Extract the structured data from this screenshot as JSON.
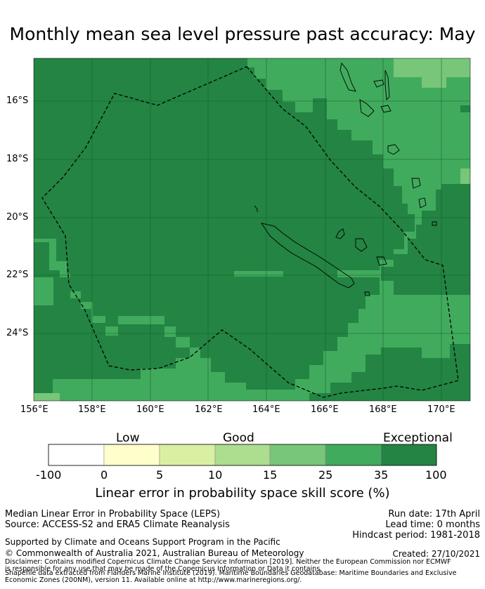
{
  "title": "Monthly mean sea level pressure past accuracy: May",
  "map": {
    "lat_labels": [
      "16°S",
      "18°S",
      "20°S",
      "22°S",
      "24°S"
    ],
    "lon_labels": [
      "156°E",
      "158°E",
      "160°E",
      "162°E",
      "164°E",
      "166°E",
      "168°E",
      "170°E"
    ],
    "colors": {
      "exceptional": "#238443",
      "good_high": "#41ab5d",
      "good_mid": "#78c679",
      "good_low": "#addd8e",
      "low_high": "#d9f0a3",
      "low_low": "#ffffcc",
      "none": "#ffffff"
    }
  },
  "colorbar": {
    "categories": [
      "Low",
      "Good",
      "Exceptional"
    ],
    "ticks": [
      "-100",
      "0",
      "5",
      "10",
      "15",
      "25",
      "35",
      "100"
    ],
    "label": "Linear error in probability space skill score (%)"
  },
  "info": {
    "left1": "Median Linear Error in Probability Space (LEPS)",
    "left2": "Source: ACCESS-S2 and ERA5 Climate Reanalysis",
    "run_date": "Run date: 17th April",
    "lead_time": "Lead time: 0 months",
    "hindcast": "Hindcast period: 1981-2018",
    "supported": "Supported by Climate and Oceans Support Program in the Pacific",
    "copyright": "© Commonwealth of Australia 2021, Australian Bureau of Meteorology",
    "created": "Created: 27/10/2021",
    "disclaimer": "Disclaimer: Contains modified Copernicus Climate Change Service Information [2019]. Neither the European Commission nor ECMWF is responsible for any use that may be made of the Copernicus Information or Data it contains.",
    "shapefile": "Shapefile data extracted from Flanders Marine Institute (2019). Maritime Boundaries Geodatabase: Maritime Boundaries and Exclusive Economic Zones (200NM), version 11. Available online at http://www.marineregions.org/."
  }
}
